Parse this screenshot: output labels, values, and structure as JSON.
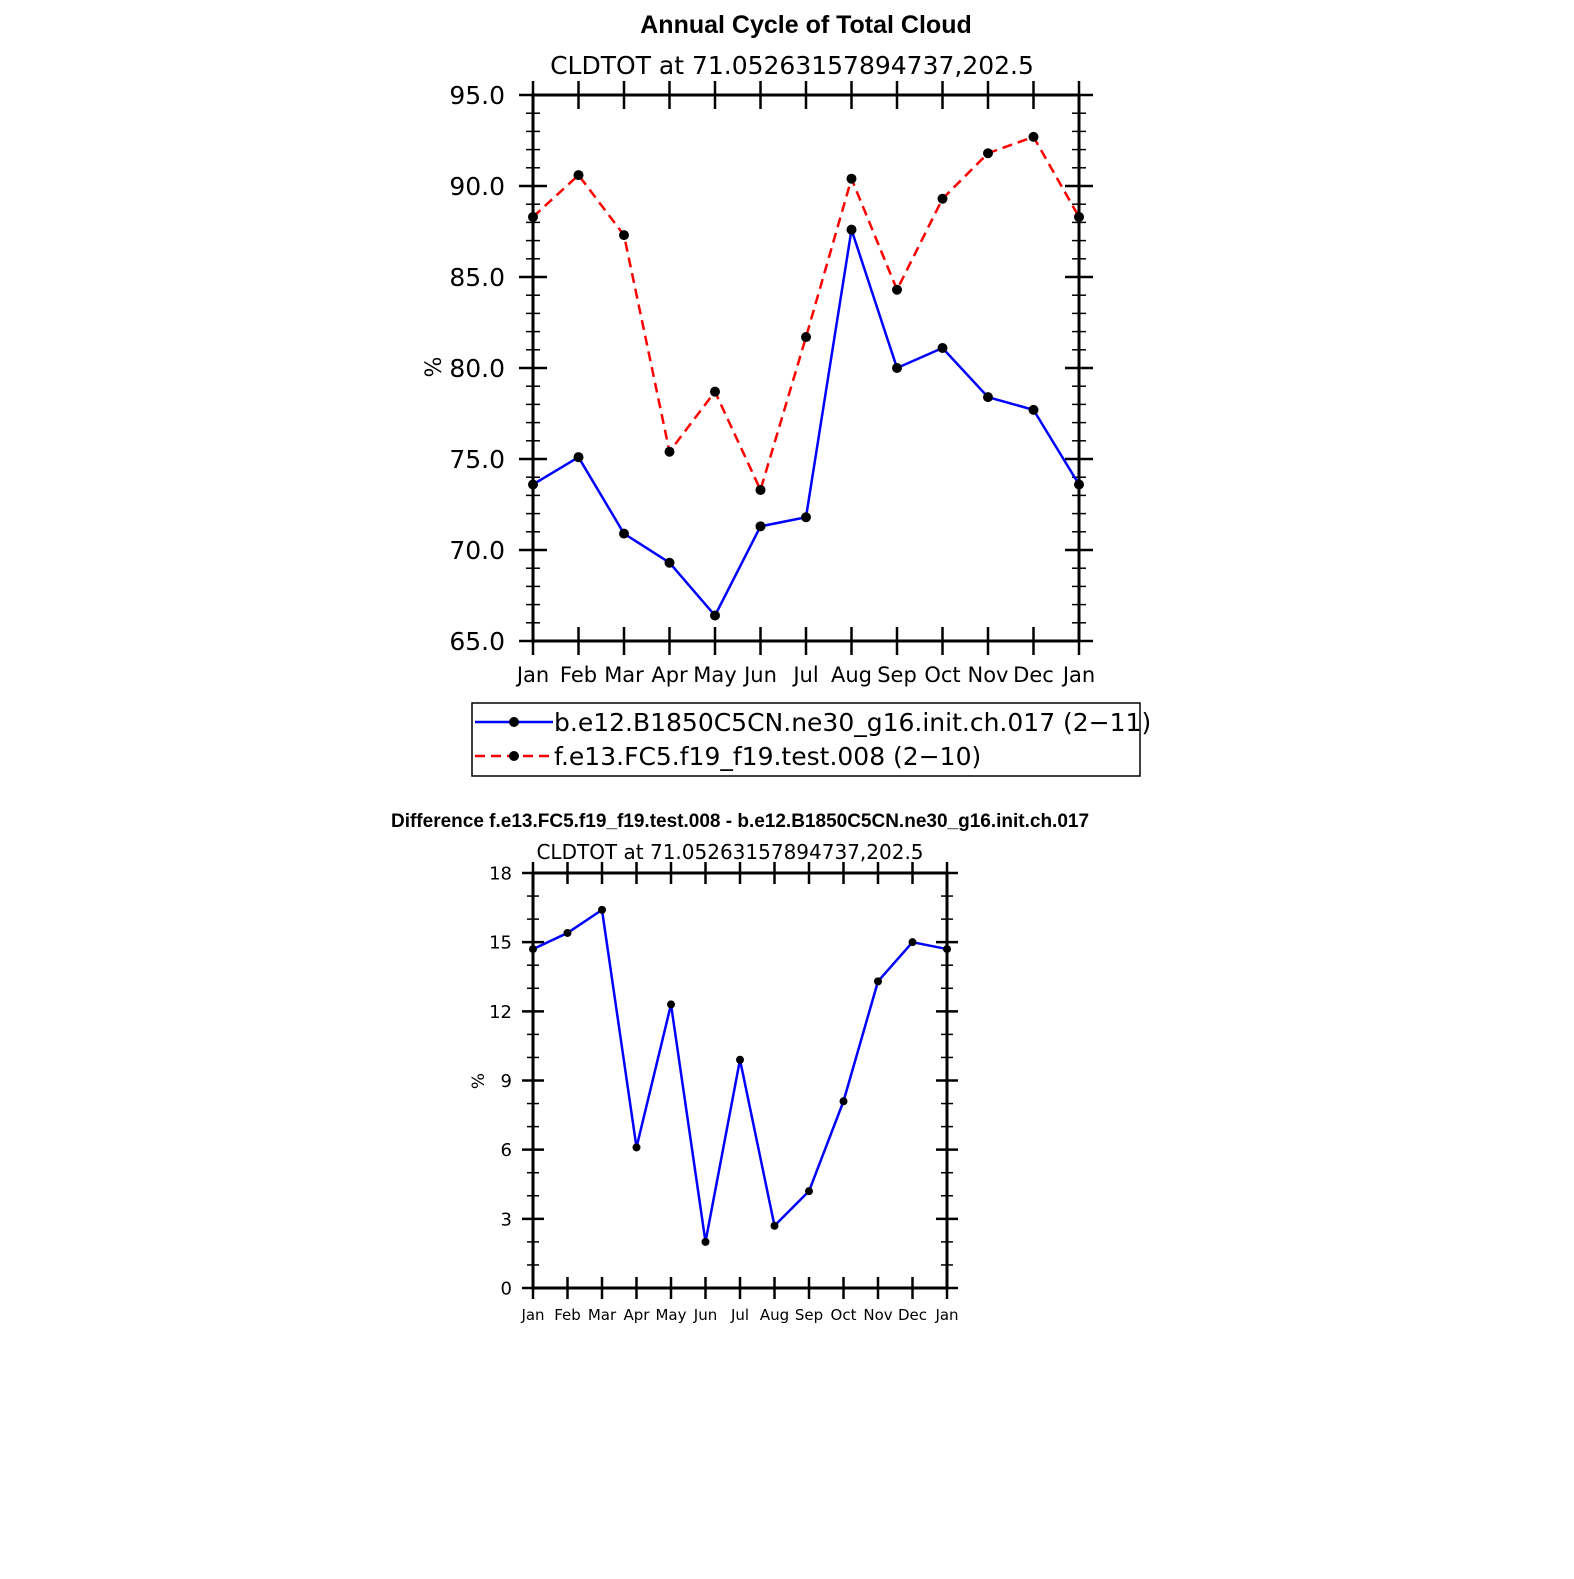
{
  "chart_data": [
    {
      "type": "line",
      "title": "Annual Cycle of Total Cloud",
      "subtitle": "CLDTOT at 71.05263157894737,202.5",
      "ylabel": "%",
      "xlabel": "",
      "ylim": [
        65,
        95
      ],
      "yticks": [
        "65.0",
        "70.0",
        "75.0",
        "80.0",
        "85.0",
        "90.0",
        "95.0"
      ],
      "ytick_values": [
        65,
        70,
        75,
        80,
        85,
        90,
        95
      ],
      "categories": [
        "Jan",
        "Feb",
        "Mar",
        "Apr",
        "May",
        "Jun",
        "Jul",
        "Aug",
        "Sep",
        "Oct",
        "Nov",
        "Dec",
        "Jan"
      ],
      "legend_position": "bottom",
      "series": [
        {
          "name": "b.e12.B1850C5CN.ne30_g16.init.ch.017 (2−11)",
          "color": "#0000ff",
          "style": "solid",
          "values": [
            73.6,
            75.1,
            70.9,
            69.3,
            66.4,
            71.3,
            71.8,
            87.6,
            80.0,
            81.1,
            78.4,
            77.7,
            73.6
          ]
        },
        {
          "name": "f.e13.FC5.f19_f19.test.008 (2−10)",
          "color": "#ff0000",
          "style": "dashed",
          "values": [
            88.3,
            90.6,
            87.3,
            75.4,
            78.7,
            73.3,
            81.7,
            90.4,
            84.3,
            89.3,
            91.8,
            92.7,
            88.3
          ]
        }
      ]
    },
    {
      "type": "line",
      "title": "Difference f.e13.FC5.f19_f19.test.008 - b.e12.B1850C5CN.ne30_g16.init.ch.017",
      "subtitle": "CLDTOT at 71.05263157894737,202.5",
      "ylabel": "%",
      "xlabel": "",
      "ylim": [
        0,
        18
      ],
      "yticks": [
        "0",
        "3",
        "6",
        "9",
        "12",
        "15",
        "18"
      ],
      "ytick_values": [
        0,
        3,
        6,
        9,
        12,
        15,
        18
      ],
      "categories": [
        "Jan",
        "Feb",
        "Mar",
        "Apr",
        "May",
        "Jun",
        "Jul",
        "Aug",
        "Sep",
        "Oct",
        "Nov",
        "Dec",
        "Jan"
      ],
      "series": [
        {
          "name": "difference",
          "color": "#0000ff",
          "style": "solid",
          "values": [
            14.7,
            15.4,
            16.4,
            6.1,
            12.3,
            2.0,
            9.9,
            2.7,
            4.2,
            8.1,
            13.3,
            15.0,
            14.7
          ]
        }
      ]
    }
  ]
}
